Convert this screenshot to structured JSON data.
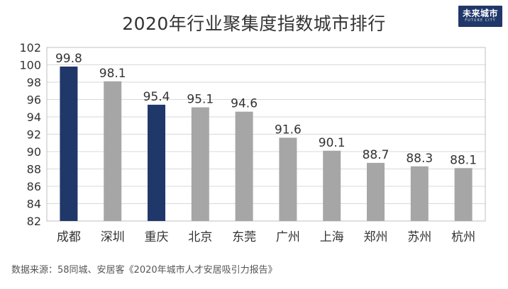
{
  "title": "2020年行业聚集度指数城市排行",
  "logo": {
    "text": "未来城市",
    "sub": "FUTURE CITY"
  },
  "source": "数据来源：58同城、安居客《2020年城市人才安居吸引力报告》",
  "colors": {
    "highlight": "#20376a",
    "normal": "#a6a6a6",
    "grid": "#d9d9d9",
    "text": "#333333"
  },
  "chart_data": {
    "type": "bar",
    "title": "2020年行业聚集度指数城市排行",
    "xlabel": "",
    "ylabel": "",
    "categories": [
      "成都",
      "深圳",
      "重庆",
      "北京",
      "东莞",
      "广州",
      "上海",
      "郑州",
      "苏州",
      "杭州"
    ],
    "values": [
      99.8,
      98.1,
      95.4,
      95.1,
      94.6,
      91.6,
      90.1,
      88.7,
      88.3,
      88.1
    ],
    "value_labels": [
      "99.8",
      "98.1",
      "95.4",
      "95.1",
      "94.6",
      "91.6",
      "90.1",
      "88.7",
      "88.3",
      "88.1"
    ],
    "highlighted": [
      "成都",
      "重庆"
    ],
    "ylim": [
      82,
      102
    ],
    "yticks": [
      82,
      84,
      86,
      88,
      90,
      92,
      94,
      96,
      98,
      100,
      102
    ],
    "grid": true,
    "legend": "none"
  }
}
